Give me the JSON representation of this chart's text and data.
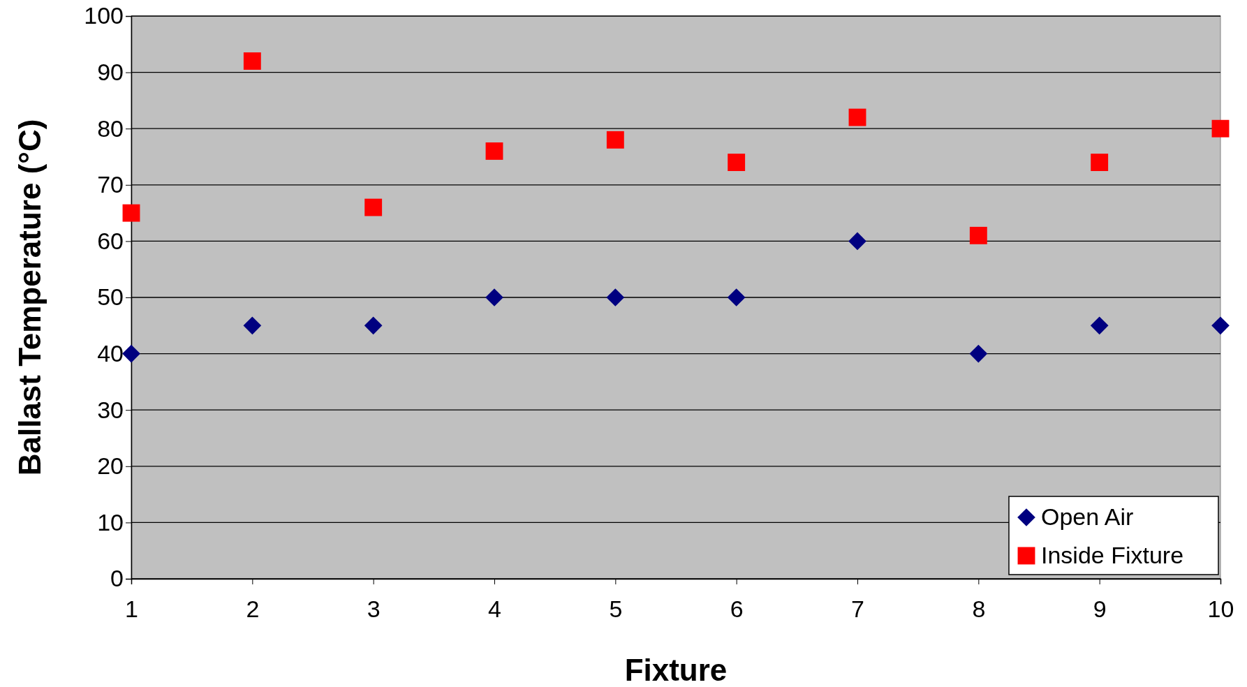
{
  "chart_data": {
    "type": "scatter",
    "xlabel": "Fixture",
    "ylabel": "Ballast Temperature (°C)",
    "x": [
      1,
      2,
      3,
      4,
      5,
      6,
      7,
      8,
      9,
      10
    ],
    "series": [
      {
        "name": "Open Air",
        "color": "#000080",
        "marker": "diamond",
        "values": [
          40,
          45,
          45,
          50,
          50,
          50,
          60,
          40,
          45,
          45
        ]
      },
      {
        "name": "Inside Fixture",
        "color": "#ff0000",
        "marker": "square",
        "values": [
          65,
          92,
          66,
          76,
          78,
          74,
          82,
          61,
          74,
          80
        ]
      }
    ],
    "xlim": [
      1,
      10
    ],
    "xticks": [
      1,
      2,
      3,
      4,
      5,
      6,
      7,
      8,
      9,
      10
    ],
    "ylim": [
      0,
      100
    ],
    "yticks": [
      0,
      10,
      20,
      30,
      40,
      50,
      60,
      70,
      80,
      90,
      100
    ],
    "grid": "y",
    "legend": "bottom right"
  }
}
